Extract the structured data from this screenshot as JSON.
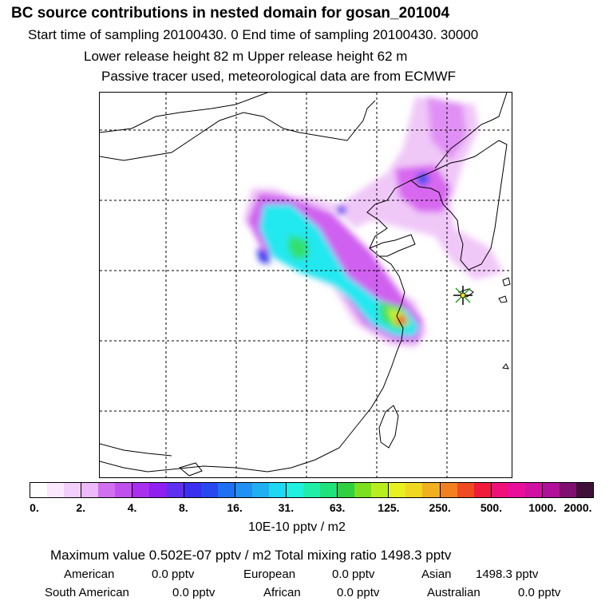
{
  "header": {
    "title": "BC  source contributions in nested domain for gosan_201004",
    "line1": "Start time of sampling 20100430.     0     End time of sampling 20100430. 30000",
    "line2": "Lower release height   82 m           Upper release height   62 m",
    "line3": "Passive tracer used, meteorological data are from ECMWF"
  },
  "map": {
    "receptor_icon": "star-asterisk-icon",
    "plume_colors": [
      "#f0c8f8",
      "#d060f0",
      "#9a30f0",
      "#3050f0",
      "#20c0f0",
      "#20f0d0",
      "#30e070",
      "#d0f020",
      "#f0c000",
      "#f03030"
    ]
  },
  "colorbar": {
    "colors": [
      "#ffffff",
      "#fbe8ff",
      "#f2d0fb",
      "#ebbaf7",
      "#d070ee",
      "#c050ec",
      "#a830ee",
      "#9020f0",
      "#6030f0",
      "#3a30ee",
      "#2a48f0",
      "#2070f2",
      "#2090f2",
      "#20b0f2",
      "#20d8f2",
      "#20f0e0",
      "#20eea8",
      "#20e27a",
      "#30d040",
      "#7ae020",
      "#b8ee20",
      "#e8f020",
      "#f0d820",
      "#f0b020",
      "#f08020",
      "#f04a20",
      "#f01a3a",
      "#f0107a",
      "#e8109a",
      "#d010a0",
      "#b0109a",
      "#801070",
      "#401038"
    ],
    "ticks": [
      "0.",
      "2.",
      "4.",
      "8.",
      "16.",
      "31.",
      "63.",
      "125.",
      "250.",
      "500.",
      "1000.",
      "2000."
    ],
    "units": "10E-10 pptv / m2"
  },
  "summary": {
    "max_line": "Maximum value  0.502E-07 pptv / m2      Total mixing ratio     1498.3 pptv",
    "regions_row1": [
      {
        "label": "American",
        "value": "0.0 pptv"
      },
      {
        "label": "European",
        "value": "0.0 pptv"
      },
      {
        "label": "Asian",
        "value": "1498.3 pptv"
      }
    ],
    "regions_row2": [
      {
        "label": "South American",
        "value": "0.0 pptv"
      },
      {
        "label": "African",
        "value": "0.0 pptv"
      },
      {
        "label": "Australian",
        "value": "0.0 pptv"
      }
    ]
  }
}
